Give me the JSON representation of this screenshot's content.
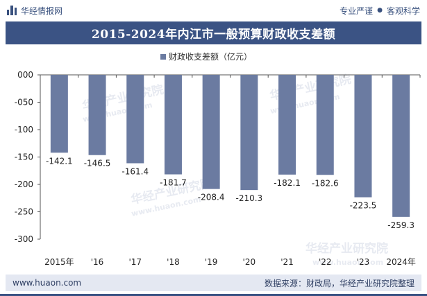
{
  "header": {
    "brand_name": "华经情报网",
    "tag_left": "专业严谨",
    "separator": "●",
    "tag_right": "客观科学"
  },
  "title": "2015-2024年内江市一般预算财政收支差额",
  "colors": {
    "bar": "#6b7ba1",
    "title_bg": "#3b5384",
    "footer_bg": "#e4e8f2"
  },
  "chart_data": {
    "type": "bar",
    "categories": [
      "2015年",
      "'16",
      "'17",
      "'18",
      "'19",
      "'20",
      "'21",
      "'22",
      "'23",
      "2024年"
    ],
    "series": [
      {
        "name": "财政收支差额（亿元）",
        "values": [
          -142.1,
          -146.5,
          -161.4,
          -181.7,
          -208.4,
          -210.3,
          -182.1,
          -182.6,
          -223.5,
          -259.3
        ]
      }
    ],
    "value_labels": [
      "-142.1",
      "-146.5",
      "-161.4",
      "-181.7",
      "-208.4",
      "-210.3",
      "-182.1",
      "-182.6",
      "-223.5",
      "-259.3"
    ],
    "y_ticks": [
      "000",
      "-050",
      "-100",
      "-150",
      "-200",
      "-250",
      "-300"
    ],
    "ylim": [
      -300,
      0
    ],
    "legend_position": "top-center",
    "grid": false
  },
  "watermarks": [
    "华经产业研究院",
    "www.huaon.com"
  ],
  "footer": {
    "website": "www.huaon.com",
    "source": "数据来源：财政局，华经产业研究院整理"
  }
}
